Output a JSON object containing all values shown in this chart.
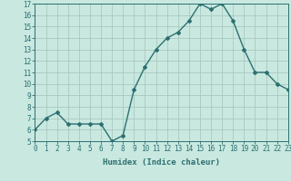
{
  "x": [
    0,
    1,
    2,
    3,
    4,
    5,
    6,
    7,
    8,
    9,
    10,
    11,
    12,
    13,
    14,
    15,
    16,
    17,
    18,
    19,
    20,
    21,
    22,
    23
  ],
  "y": [
    6.0,
    7.0,
    7.5,
    6.5,
    6.5,
    6.5,
    6.5,
    5.0,
    5.5,
    9.5,
    11.5,
    13.0,
    14.0,
    14.5,
    15.5,
    17.0,
    16.5,
    17.0,
    15.5,
    13.0,
    11.0,
    11.0,
    10.0,
    9.5
  ],
  "xlabel": "Humidex (Indice chaleur)",
  "line_color": "#2d7070",
  "marker": "D",
  "marker_size": 2.0,
  "line_width": 1.0,
  "background_color": "#c8e8e0",
  "grid_color": "#a8c8c0",
  "tick_color": "#2d7070",
  "label_color": "#2d7070",
  "xlim": [
    0,
    23
  ],
  "ylim": [
    5,
    17
  ],
  "yticks": [
    5,
    6,
    7,
    8,
    9,
    10,
    11,
    12,
    13,
    14,
    15,
    16,
    17
  ],
  "xticks": [
    0,
    1,
    2,
    3,
    4,
    5,
    6,
    7,
    8,
    9,
    10,
    11,
    12,
    13,
    14,
    15,
    16,
    17,
    18,
    19,
    20,
    21,
    22,
    23
  ],
  "xlabel_fontsize": 6.5,
  "tick_fontsize": 5.5
}
